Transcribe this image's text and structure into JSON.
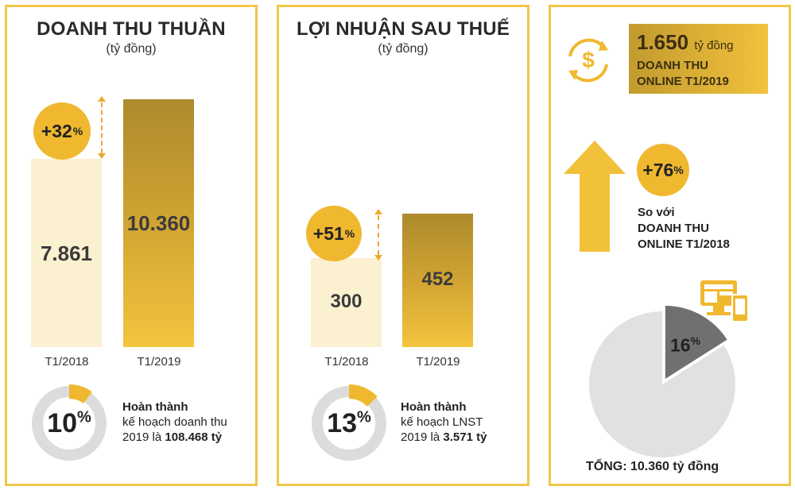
{
  "chart_data": [
    {
      "type": "bar",
      "title": "DOANH THU THUẦN",
      "subtitle": "(tỷ đồng)",
      "categories": [
        "T1/2018",
        "T1/2019"
      ],
      "values": [
        7861,
        10360
      ],
      "value_labels": [
        "7.861",
        "10.360"
      ],
      "ylim": [
        0,
        10360
      ],
      "growth_label": "+32",
      "completion": {
        "percent": 10,
        "percent_label": "10",
        "line1": "Hoàn thành",
        "line2": "kế hoạch doanh thu",
        "line3_prefix": "2019 là ",
        "target": "108.468 tỷ"
      }
    },
    {
      "type": "bar",
      "title": "LỢI NHUẬN SAU THUẾ",
      "subtitle": "(tỷ đồng)",
      "categories": [
        "T1/2018",
        "T1/2019"
      ],
      "values": [
        300,
        452
      ],
      "value_labels": [
        "300",
        "452"
      ],
      "ylim": [
        0,
        452
      ],
      "growth_label": "+51",
      "completion": {
        "percent": 13,
        "percent_label": "13",
        "line1": "Hoàn thành",
        "line2": "kế hoạch LNST",
        "line3_prefix": "2019 là ",
        "target": "3.571 tỷ"
      }
    },
    {
      "type": "pie",
      "slices": [
        {
          "label": "16",
          "value": 16,
          "color": "#707070"
        },
        {
          "label": "",
          "value": 84,
          "color": "#e1e1e1"
        }
      ],
      "total_label": "TỔNG: 10.360 tỷ đồng"
    }
  ],
  "percent_sign": "%",
  "online": {
    "amount": "1.650",
    "amount_unit": "tỷ đồng",
    "line2": "DOANH THU",
    "line3": "ONLINE T1/2019",
    "growth_label": "+76",
    "compare1": "So với",
    "compare2": "DOANH THU",
    "compare3": "ONLINE T1/2018"
  },
  "icons": [
    "dollar-cycle-icon",
    "up-arrow-icon",
    "devices-icon"
  ],
  "colors": {
    "gold": "#f0b82f",
    "light_bar": "#fbf0cf",
    "border": "#f2c64a",
    "donut_track": "#dcdcdc",
    "pie_online": "#707070",
    "pie_rest": "#e1e1e1"
  }
}
